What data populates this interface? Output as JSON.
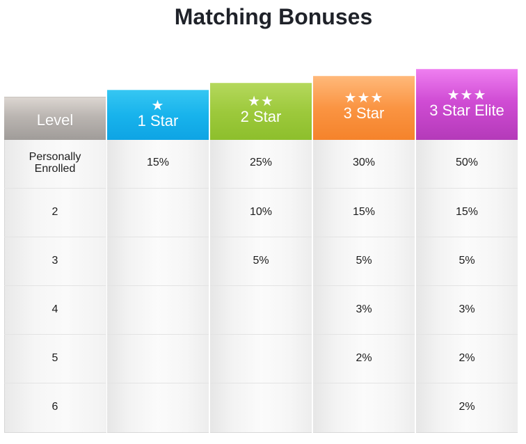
{
  "title": "Matching Bonuses",
  "columns": [
    {
      "label": "Level",
      "stars": ""
    },
    {
      "label": "1 Star",
      "stars": "★"
    },
    {
      "label": "2 Star",
      "stars": "★★"
    },
    {
      "label": "3 Star",
      "stars": "★★★"
    },
    {
      "label": "3 Star Elite",
      "stars": "★★★"
    }
  ],
  "rows": [
    {
      "level": "Personally\nEnrolled",
      "values": [
        "15%",
        "25%",
        "30%",
        "50%"
      ]
    },
    {
      "level": "2",
      "values": [
        "",
        "10%",
        "15%",
        "15%"
      ]
    },
    {
      "level": "3",
      "values": [
        "",
        "5%",
        "5%",
        "5%"
      ]
    },
    {
      "level": "4",
      "values": [
        "",
        "",
        "3%",
        "3%"
      ]
    },
    {
      "level": "5",
      "values": [
        "",
        "",
        "2%",
        "2%"
      ]
    },
    {
      "level": "6",
      "values": [
        "",
        "",
        "",
        "2%"
      ]
    }
  ],
  "colors": {
    "level_header": "#b6b1ad",
    "one_star": "#18b3ec",
    "two_star": "#9dc93c",
    "three_star": "#fa9442",
    "three_star_elite": "#d04cd4"
  }
}
